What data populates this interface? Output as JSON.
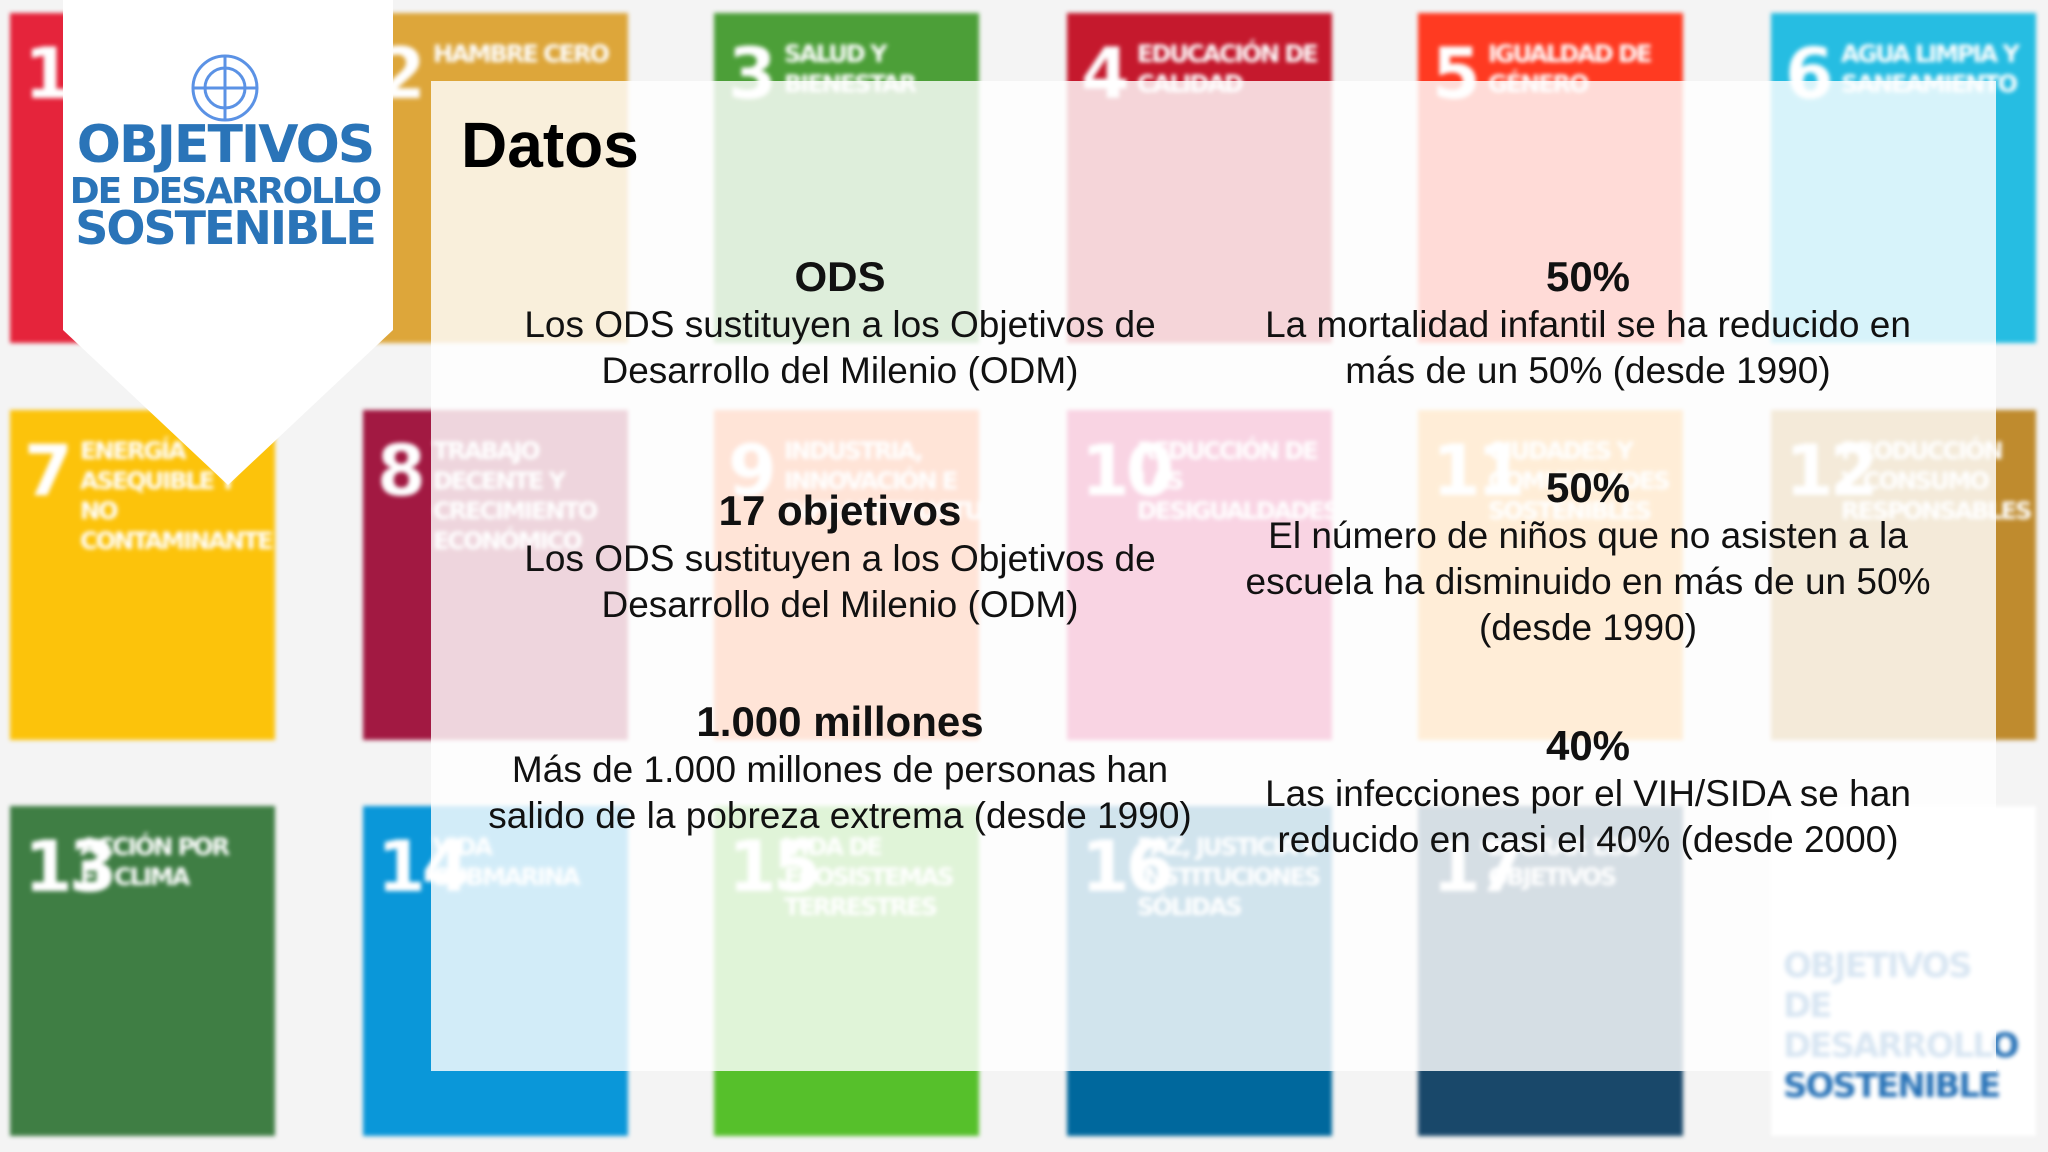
{
  "tiles": [
    {
      "number": "1"
    },
    {
      "number": "2",
      "label": "Hambre cero"
    },
    {
      "number": "3",
      "label": "Salud y bienestar"
    },
    {
      "number": "4",
      "label": "Educación de calidad"
    },
    {
      "number": "5",
      "label": "Igualdad de género"
    },
    {
      "number": "6",
      "label": "Agua limpia y saneamiento"
    },
    {
      "number": "7",
      "label": "Energía asequible y no contaminante"
    },
    {
      "number": "8",
      "label": "Trabajo decente y crecimiento económico"
    },
    {
      "number": "9",
      "label": "Industria, innovación e infraestructura"
    },
    {
      "number": "10",
      "label": "Reducción de las desigualdades"
    },
    {
      "number": "11",
      "label": "Ciudades y comunidades sostenibles"
    },
    {
      "number": "12",
      "label": "Producción y consumo responsables"
    },
    {
      "number": "13",
      "label": "Acción por el clima"
    },
    {
      "number": "14",
      "label": "Vida submarina"
    },
    {
      "number": "15",
      "label": "Vida de ecosistemas terrestres"
    },
    {
      "number": "16",
      "label": "Paz, justicia e instituciones sólidas"
    },
    {
      "number": "17",
      "label": "Lograr los objetivos"
    },
    {
      "label": "Objetivos de desarrollo sostenible"
    }
  ],
  "logo": {
    "line1": "OBJETIVOS",
    "line2": "DE DESARROLLO",
    "line3": "SOSTENIBLE"
  },
  "title": "Datos",
  "facts_left": [
    {
      "heading": "ODS",
      "text": "Los ODS sustituyen a los Objetivos de Desarrollo del Milenio (ODM)"
    },
    {
      "heading": "17 objetivos",
      "text": "Los ODS sustituyen a los Objetivos de Desarrollo del Milenio (ODM)"
    },
    {
      "heading": "1.000 millones",
      "text": "Más de 1.000 millones de personas han salido de la pobreza extrema (desde 1990)"
    }
  ],
  "facts_right": [
    {
      "heading": "50%",
      "text": "La mortalidad infantil se ha reducido en más de un 50% (desde 1990)"
    },
    {
      "heading": "50%",
      "text": "El número de niños que no asisten a la escuela ha disminuido en más de un 50% (desde 1990)"
    },
    {
      "heading": "40%",
      "text": "Las infecciones por el VIH/SIDA se han reducido en casi el 40% (desde 2000)"
    }
  ]
}
